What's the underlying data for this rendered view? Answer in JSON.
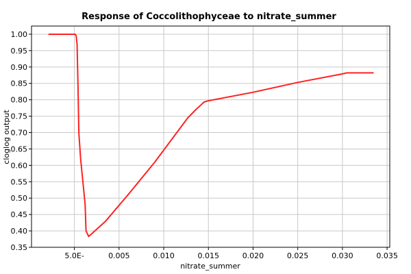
{
  "chart_data": {
    "type": "line",
    "title": "Response of Coccolithophyceae to nitrate_summer",
    "xlabel": "nitrate_summer",
    "ylabel": "cloglog output",
    "xlim": [
      -0.0048,
      0.0353
    ],
    "ylim": [
      0.35,
      1.025
    ],
    "grid": true,
    "line_color": "#ff2020",
    "x_ticks": [
      {
        "value": 0.0,
        "label": "5.0E-"
      },
      {
        "value": 0.005,
        "label": "0.005"
      },
      {
        "value": 0.01,
        "label": "0.010"
      },
      {
        "value": 0.015,
        "label": "0.015"
      },
      {
        "value": 0.02,
        "label": "0.020"
      },
      {
        "value": 0.025,
        "label": "0.025"
      },
      {
        "value": 0.03,
        "label": "0.030"
      },
      {
        "value": 0.035,
        "label": "0.035"
      }
    ],
    "y_ticks": [
      {
        "value": 0.35,
        "label": "0.35"
      },
      {
        "value": 0.4,
        "label": "0.40"
      },
      {
        "value": 0.45,
        "label": "0.45"
      },
      {
        "value": 0.5,
        "label": "0.50"
      },
      {
        "value": 0.55,
        "label": "0.55"
      },
      {
        "value": 0.6,
        "label": "0.60"
      },
      {
        "value": 0.65,
        "label": "0.65"
      },
      {
        "value": 0.7,
        "label": "0.70"
      },
      {
        "value": 0.75,
        "label": "0.75"
      },
      {
        "value": 0.8,
        "label": "0.80"
      },
      {
        "value": 0.85,
        "label": "0.85"
      },
      {
        "value": 0.9,
        "label": "0.90"
      },
      {
        "value": 0.95,
        "label": "0.95"
      },
      {
        "value": 1.0,
        "label": "1.00"
      }
    ],
    "series": [
      {
        "x": [
          -0.0029,
          0.0001,
          0.0002,
          0.0003,
          0.0004,
          0.0005,
          0.0007,
          0.0012,
          0.0013,
          0.0016,
          0.0035,
          0.006,
          0.009,
          0.0127,
          0.0136,
          0.0142,
          0.0145,
          0.015,
          0.02,
          0.025,
          0.03,
          0.0305,
          0.0335
        ],
        "y": [
          1.0,
          1.0,
          0.995,
          0.97,
          0.85,
          0.7,
          0.62,
          0.48,
          0.4,
          0.383,
          0.43,
          0.51,
          0.61,
          0.745,
          0.77,
          0.785,
          0.793,
          0.797,
          0.823,
          0.853,
          0.879,
          0.882,
          0.882
        ]
      }
    ]
  }
}
